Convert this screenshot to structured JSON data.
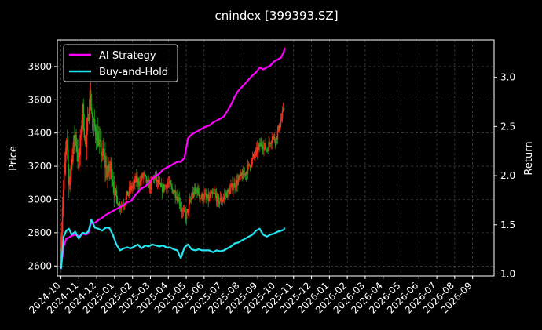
{
  "chart_data": {
    "type": "line",
    "title": "cnindex [399393.SZ]",
    "xlabel": "",
    "ylabel": "Price",
    "ylabel_right": "Return",
    "background": "#000000",
    "grid": true,
    "legend_position": "top-left",
    "x_ticks": [
      "2024-10",
      "2024-11",
      "2024-12",
      "2025-01",
      "2025-02",
      "2025-03",
      "2025-04",
      "2025-05",
      "2025-06",
      "2025-07",
      "2025-08",
      "2025-09",
      "2025-10",
      "2025-11",
      "2025-12",
      "2026-01",
      "2026-02",
      "2026-03",
      "2026-04",
      "2026-05",
      "2026-06",
      "2026-07",
      "2026-08",
      "2026-09"
    ],
    "y_left": {
      "lim": [
        2540,
        3960
      ],
      "ticks": [
        "2600",
        "2800",
        "3000",
        "3200",
        "3400",
        "3600",
        "3800"
      ]
    },
    "y_right": {
      "lim": [
        0.98,
        3.38
      ],
      "ticks": [
        "1.0",
        "1.5",
        "2.0",
        "2.5",
        "3.0"
      ]
    },
    "x_lim_months": [
      -0.2,
      24.2
    ],
    "candle_colors": {
      "up": "#ff2a1a",
      "down": "#1fa81f"
    },
    "price_keypoints": [
      [
        0.0,
        2700
      ],
      [
        0.1,
        3000
      ],
      [
        0.2,
        3150
      ],
      [
        0.3,
        3350
      ],
      [
        0.45,
        3100
      ],
      [
        0.6,
        3250
      ],
      [
        0.8,
        3400
      ],
      [
        1.0,
        3200
      ],
      [
        1.2,
        3550
      ],
      [
        1.4,
        3300
      ],
      [
        1.6,
        3650
      ],
      [
        1.8,
        3450
      ],
      [
        2.0,
        3400
      ],
      [
        2.2,
        3300
      ],
      [
        2.4,
        3250
      ],
      [
        2.6,
        3150
      ],
      [
        2.8,
        3200
      ],
      [
        3.0,
        3050
      ],
      [
        3.2,
        2980
      ],
      [
        3.4,
        2960
      ],
      [
        3.6,
        3000
      ],
      [
        3.8,
        3050
      ],
      [
        4.0,
        3080
      ],
      [
        4.2,
        3120
      ],
      [
        4.4,
        3100
      ],
      [
        4.6,
        3150
      ],
      [
        4.8,
        3100
      ],
      [
        5.0,
        3080
      ],
      [
        5.2,
        3140
      ],
      [
        5.4,
        3100
      ],
      [
        5.6,
        3060
      ],
      [
        5.8,
        3080
      ],
      [
        6.0,
        3100
      ],
      [
        6.2,
        3060
      ],
      [
        6.4,
        3040
      ],
      [
        6.6,
        3000
      ],
      [
        6.8,
        2920
      ],
      [
        7.0,
        2900
      ],
      [
        7.2,
        2980
      ],
      [
        7.4,
        3040
      ],
      [
        7.6,
        3060
      ],
      [
        7.8,
        3010
      ],
      [
        8.0,
        3020
      ],
      [
        8.2,
        3000
      ],
      [
        8.4,
        3020
      ],
      [
        8.6,
        3030
      ],
      [
        8.8,
        2990
      ],
      [
        9.0,
        3000
      ],
      [
        9.2,
        3030
      ],
      [
        9.4,
        3050
      ],
      [
        9.6,
        3080
      ],
      [
        9.8,
        3100
      ],
      [
        10.0,
        3130
      ],
      [
        10.3,
        3160
      ],
      [
        10.6,
        3220
      ],
      [
        10.9,
        3280
      ],
      [
        11.2,
        3340
      ],
      [
        11.5,
        3300
      ],
      [
        11.8,
        3380
      ],
      [
        12.0,
        3360
      ],
      [
        12.2,
        3440
      ],
      [
        12.4,
        3520
      ],
      [
        12.5,
        3560
      ]
    ],
    "series": [
      {
        "name": "AI Strategy",
        "color": "#ff00ff",
        "axis": "right",
        "points": [
          [
            0.0,
            1.05
          ],
          [
            0.15,
            1.28
          ],
          [
            0.3,
            1.36
          ],
          [
            0.45,
            1.37
          ],
          [
            0.6,
            1.39
          ],
          [
            0.8,
            1.4
          ],
          [
            1.0,
            1.38
          ],
          [
            1.2,
            1.41
          ],
          [
            1.4,
            1.4
          ],
          [
            1.55,
            1.42
          ],
          [
            1.7,
            1.53
          ],
          [
            1.9,
            1.52
          ],
          [
            2.1,
            1.55
          ],
          [
            2.3,
            1.57
          ],
          [
            2.5,
            1.6
          ],
          [
            2.7,
            1.62
          ],
          [
            2.9,
            1.64
          ],
          [
            3.1,
            1.66
          ],
          [
            3.3,
            1.68
          ],
          [
            3.5,
            1.7
          ],
          [
            3.7,
            1.73
          ],
          [
            3.9,
            1.74
          ],
          [
            4.1,
            1.79
          ],
          [
            4.3,
            1.83
          ],
          [
            4.5,
            1.87
          ],
          [
            4.7,
            1.89
          ],
          [
            4.9,
            1.92
          ],
          [
            5.1,
            1.97
          ],
          [
            5.3,
            2.0
          ],
          [
            5.5,
            2.02
          ],
          [
            5.7,
            2.06
          ],
          [
            5.9,
            2.08
          ],
          [
            6.1,
            2.1
          ],
          [
            6.3,
            2.12
          ],
          [
            6.5,
            2.14
          ],
          [
            6.7,
            2.14
          ],
          [
            6.9,
            2.18
          ],
          [
            7.1,
            2.38
          ],
          [
            7.3,
            2.42
          ],
          [
            7.5,
            2.44
          ],
          [
            7.7,
            2.46
          ],
          [
            7.9,
            2.48
          ],
          [
            8.1,
            2.5
          ],
          [
            8.3,
            2.51
          ],
          [
            8.5,
            2.54
          ],
          [
            8.7,
            2.56
          ],
          [
            8.9,
            2.58
          ],
          [
            9.1,
            2.6
          ],
          [
            9.3,
            2.66
          ],
          [
            9.5,
            2.72
          ],
          [
            9.7,
            2.8
          ],
          [
            9.9,
            2.86
          ],
          [
            10.1,
            2.9
          ],
          [
            10.3,
            2.94
          ],
          [
            10.5,
            2.98
          ],
          [
            10.7,
            3.02
          ],
          [
            10.9,
            3.05
          ],
          [
            11.1,
            3.1
          ],
          [
            11.3,
            3.08
          ],
          [
            11.5,
            3.1
          ],
          [
            11.7,
            3.12
          ],
          [
            11.9,
            3.16
          ],
          [
            12.1,
            3.18
          ],
          [
            12.3,
            3.2
          ],
          [
            12.45,
            3.26
          ],
          [
            12.5,
            3.3
          ]
        ]
      },
      {
        "name": "Buy-and-Hold",
        "color": "#22e6f2",
        "axis": "right",
        "points": [
          [
            0.0,
            1.05
          ],
          [
            0.15,
            1.38
          ],
          [
            0.3,
            1.44
          ],
          [
            0.45,
            1.46
          ],
          [
            0.6,
            1.4
          ],
          [
            0.8,
            1.43
          ],
          [
            1.0,
            1.36
          ],
          [
            1.2,
            1.42
          ],
          [
            1.4,
            1.41
          ],
          [
            1.55,
            1.44
          ],
          [
            1.7,
            1.55
          ],
          [
            1.9,
            1.47
          ],
          [
            2.1,
            1.46
          ],
          [
            2.3,
            1.44
          ],
          [
            2.5,
            1.47
          ],
          [
            2.7,
            1.47
          ],
          [
            2.9,
            1.4
          ],
          [
            3.1,
            1.3
          ],
          [
            3.3,
            1.24
          ],
          [
            3.5,
            1.26
          ],
          [
            3.7,
            1.27
          ],
          [
            3.9,
            1.26
          ],
          [
            4.1,
            1.28
          ],
          [
            4.3,
            1.3
          ],
          [
            4.5,
            1.26
          ],
          [
            4.7,
            1.29
          ],
          [
            4.9,
            1.28
          ],
          [
            5.1,
            1.3
          ],
          [
            5.3,
            1.29
          ],
          [
            5.5,
            1.28
          ],
          [
            5.7,
            1.29
          ],
          [
            5.9,
            1.27
          ],
          [
            6.1,
            1.27
          ],
          [
            6.3,
            1.25
          ],
          [
            6.5,
            1.24
          ],
          [
            6.7,
            1.16
          ],
          [
            6.9,
            1.27
          ],
          [
            7.1,
            1.3
          ],
          [
            7.3,
            1.25
          ],
          [
            7.5,
            1.24
          ],
          [
            7.7,
            1.25
          ],
          [
            7.9,
            1.24
          ],
          [
            8.1,
            1.24
          ],
          [
            8.3,
            1.24
          ],
          [
            8.5,
            1.22
          ],
          [
            8.7,
            1.24
          ],
          [
            8.9,
            1.23
          ],
          [
            9.1,
            1.24
          ],
          [
            9.3,
            1.26
          ],
          [
            9.5,
            1.28
          ],
          [
            9.7,
            1.31
          ],
          [
            9.9,
            1.32
          ],
          [
            10.1,
            1.34
          ],
          [
            10.3,
            1.36
          ],
          [
            10.5,
            1.38
          ],
          [
            10.7,
            1.4
          ],
          [
            10.9,
            1.44
          ],
          [
            11.1,
            1.46
          ],
          [
            11.3,
            1.4
          ],
          [
            11.5,
            1.38
          ],
          [
            11.7,
            1.4
          ],
          [
            11.9,
            1.41
          ],
          [
            12.1,
            1.43
          ],
          [
            12.3,
            1.44
          ],
          [
            12.45,
            1.45
          ],
          [
            12.5,
            1.47
          ]
        ]
      }
    ]
  }
}
